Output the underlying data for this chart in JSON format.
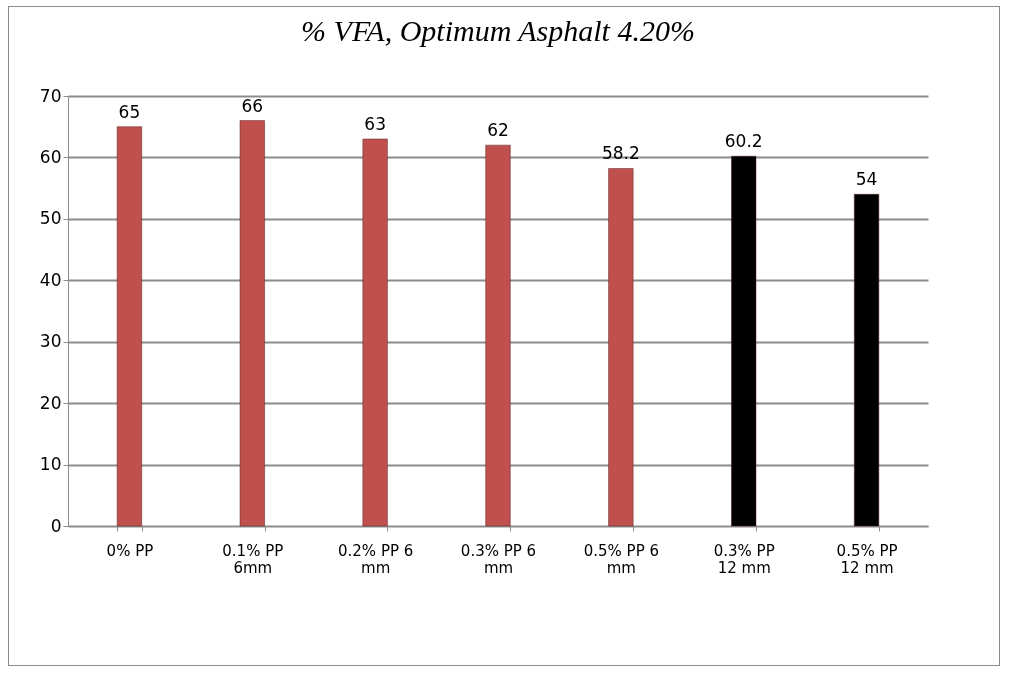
{
  "chart_data": {
    "type": "bar",
    "title": "% VFA, Optimum Asphalt 4.20%",
    "categories": [
      "0% PP",
      "0.1% PP 6mm",
      "0.2% PP 6 mm",
      "0.3% PP 6 mm",
      "0.5% PP 6 mm",
      "0.3% PP 12 mm",
      "0.5% PP 12 mm"
    ],
    "values": [
      65,
      66,
      63,
      62,
      58.2,
      60.2,
      54
    ],
    "colors": [
      "#c0504d",
      "#c0504d",
      "#c0504d",
      "#c0504d",
      "#c0504d",
      "#000000",
      "#000000"
    ],
    "ylim": [
      0,
      70
    ],
    "yticks": [
      0,
      10,
      20,
      30,
      40,
      50,
      60,
      70
    ],
    "grid": true,
    "data_labels": true
  }
}
